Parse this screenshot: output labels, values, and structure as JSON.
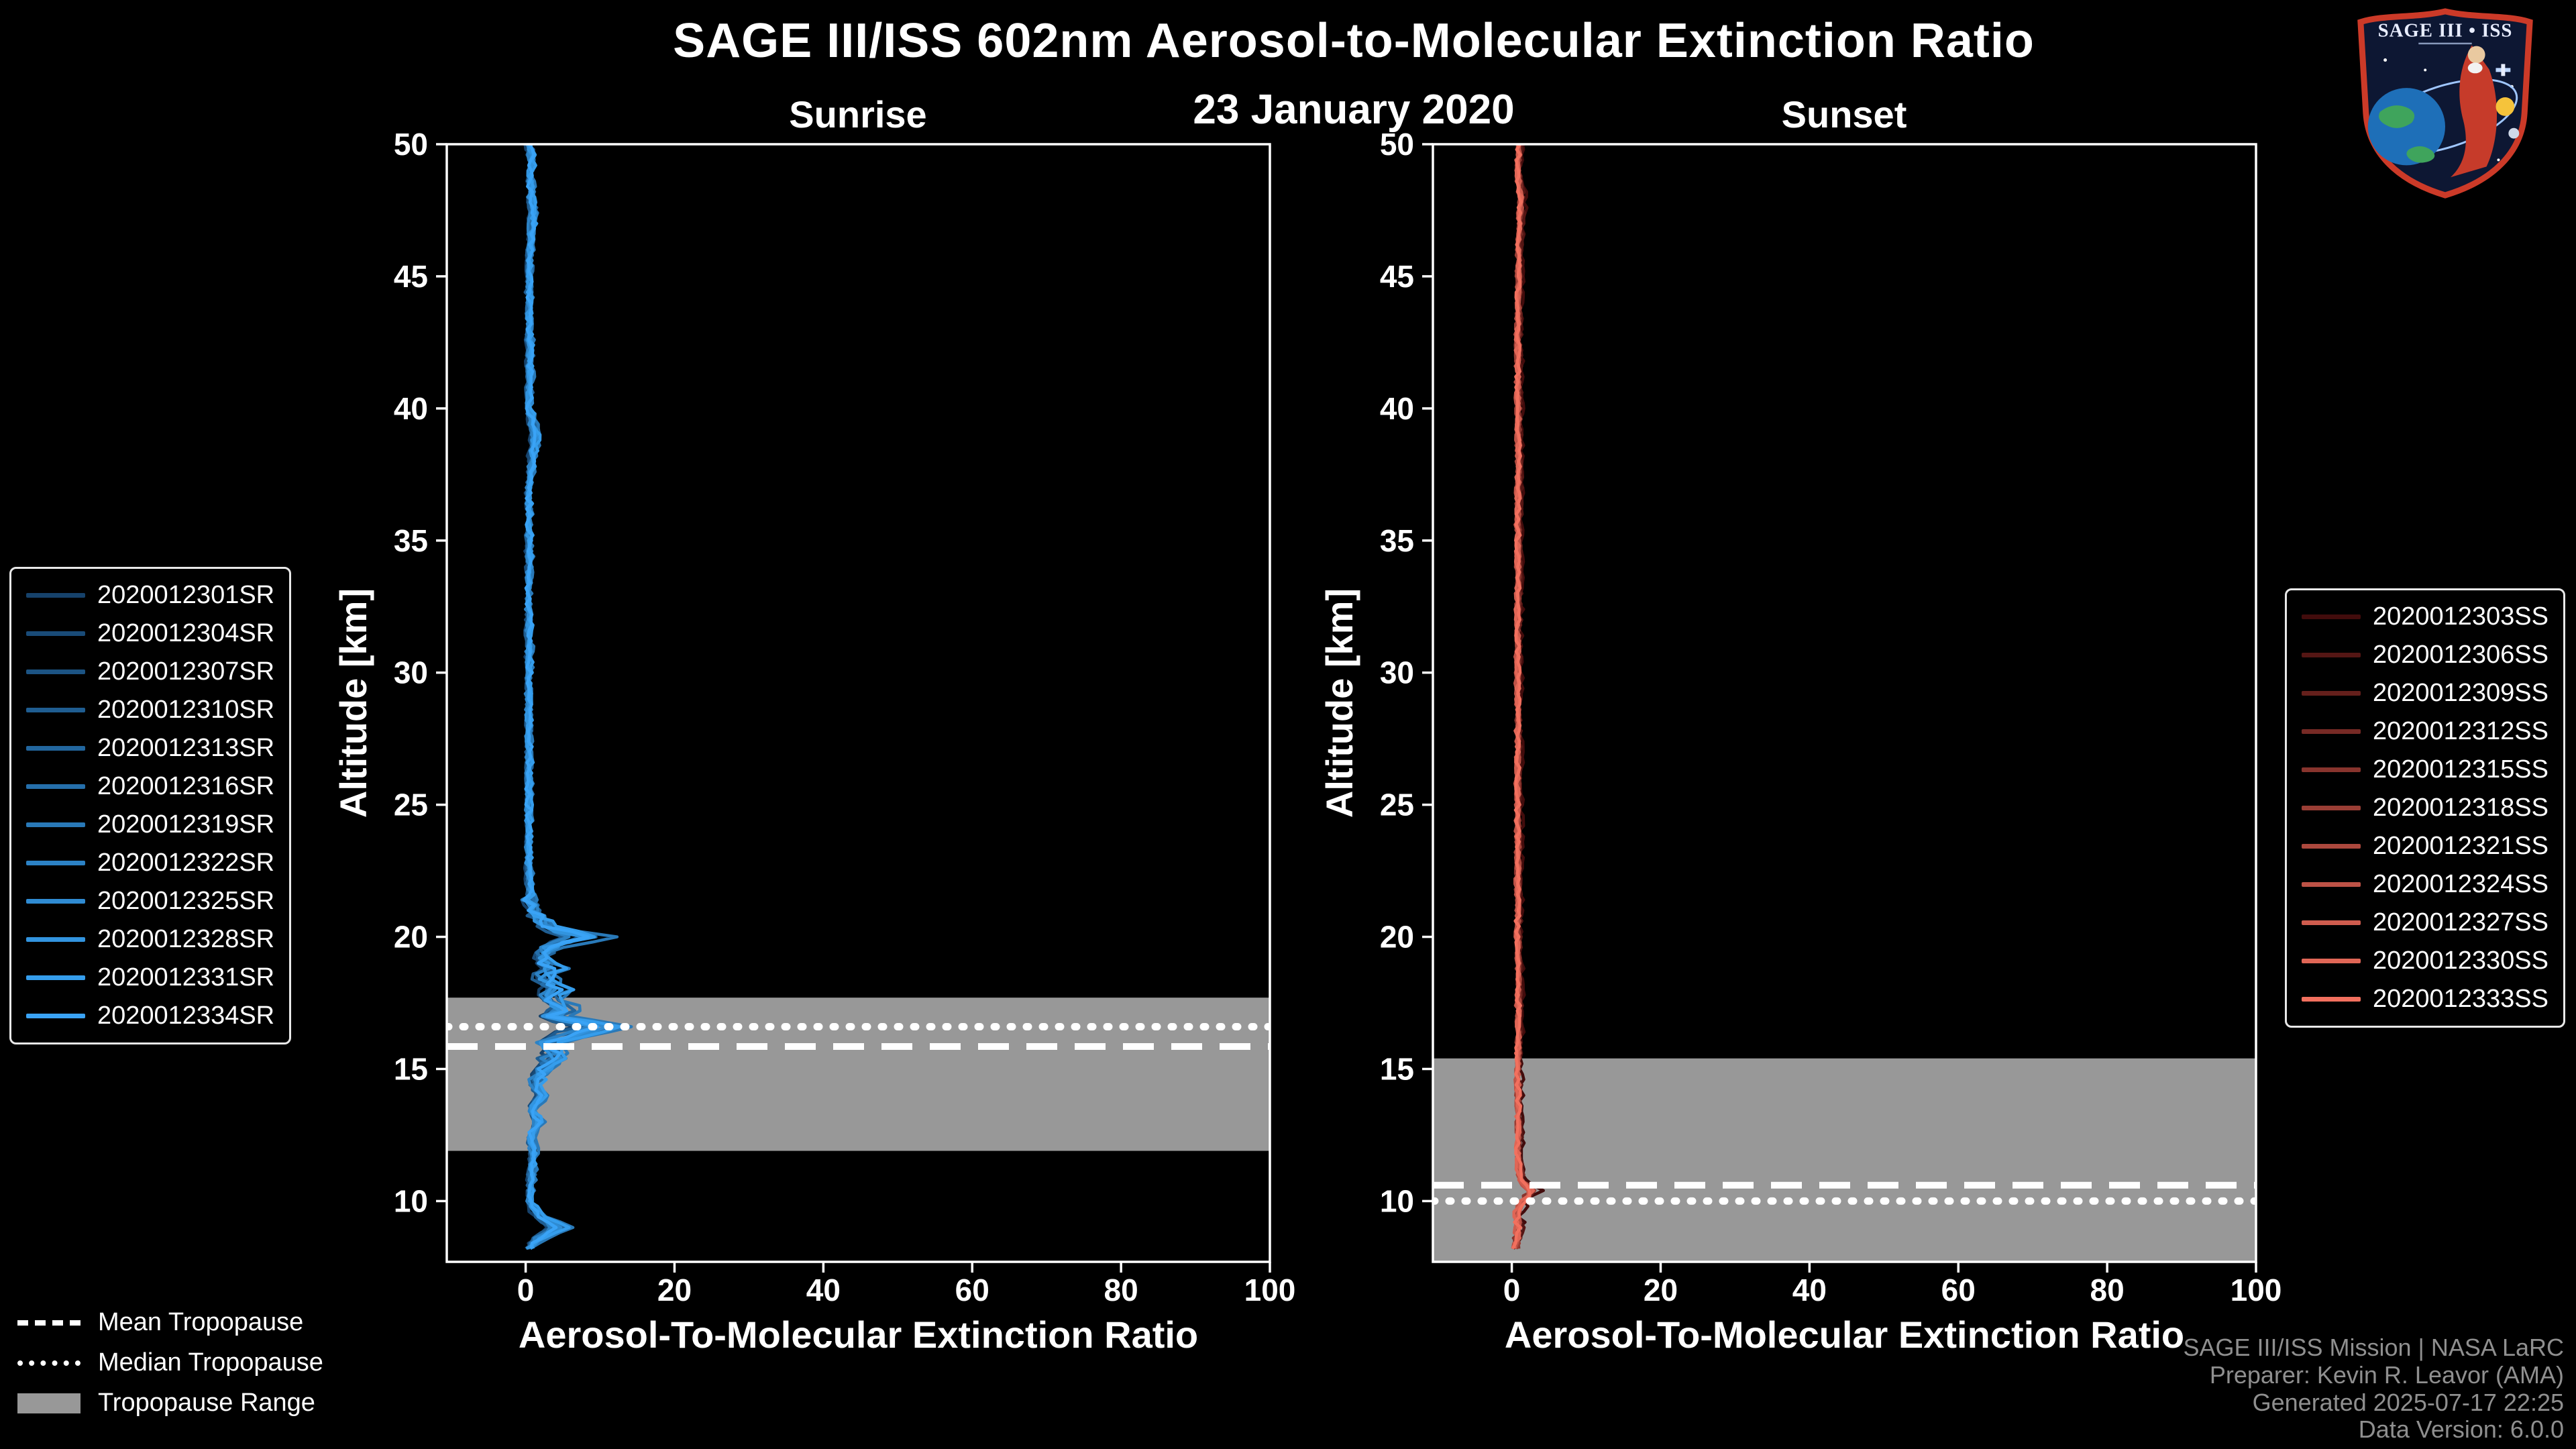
{
  "header": {
    "title": "SAGE III/ISS 602nm Aerosol-to-Molecular Extinction Ratio",
    "date": "23 January 2020"
  },
  "logo": {
    "title": "SAGE III • ISS"
  },
  "footer": {
    "credit_lines": [
      "SAGE III/ISS Mission | NASA LaRC",
      "Preparer: Kevin R. Leavor (AMA)",
      "Generated 2025-07-17 22:25",
      "Data Version: 6.0.0"
    ]
  },
  "tropopause_legend": [
    {
      "style": "dashed",
      "label": "Mean Tropopause"
    },
    {
      "style": "dotted",
      "label": "Median Tropopause"
    },
    {
      "style": "band",
      "label": "Tropopause Range"
    }
  ],
  "colors": {
    "background": "#000000",
    "axis": "#ffffff",
    "tropopause_band": "#989898",
    "tropopause_line": "#ffffff"
  },
  "chart_data": [
    {
      "type": "line",
      "panel": "sunrise",
      "title": "Sunrise",
      "xlabel": "Aerosol-To-Molecular Extinction Ratio",
      "ylabel": "Altitude [km]",
      "xlim": [
        -10.6,
        100
      ],
      "ylim": [
        7.7,
        50
      ],
      "xticks": [
        0,
        20,
        40,
        60,
        80,
        100
      ],
      "yticks": [
        10,
        15,
        20,
        25,
        30,
        35,
        40,
        45,
        50
      ],
      "grid": false,
      "legend_position": "outside-left",
      "tropopause": {
        "mean_km": 15.85,
        "median_km": 16.6,
        "range_km": [
          11.9,
          17.7
        ]
      },
      "series": [
        {
          "name": "2020012301SR",
          "color": "#16426b",
          "peak_scale": 0.6
        },
        {
          "name": "2020012304SR",
          "color": "#194b78",
          "peak_scale": 0.8
        },
        {
          "name": "2020012307SR",
          "color": "#1c5484",
          "peak_scale": 1.0
        },
        {
          "name": "2020012310SR",
          "color": "#1f5d91",
          "peak_scale": 0.7
        },
        {
          "name": "2020012313SR",
          "color": "#22669e",
          "peak_scale": 1.2
        },
        {
          "name": "2020012316SR",
          "color": "#256fab",
          "peak_scale": 0.9
        },
        {
          "name": "2020012319SR",
          "color": "#2979b8",
          "peak_scale": 1.5
        },
        {
          "name": "2020012322SR",
          "color": "#2c82c5",
          "peak_scale": 0.8
        },
        {
          "name": "2020012325SR",
          "color": "#2f8bd2",
          "peak_scale": 1.1
        },
        {
          "name": "2020012328SR",
          "color": "#3294df",
          "peak_scale": 0.95
        },
        {
          "name": "2020012331SR",
          "color": "#359dec",
          "peak_scale": 1.3
        },
        {
          "name": "2020012334SR",
          "color": "#3aa3f6",
          "peak_scale": 1.0
        }
      ],
      "profile_alt_ratio": [
        [
          8.2,
          0.5
        ],
        [
          8.5,
          1.2
        ],
        [
          9.0,
          4.4
        ],
        [
          9.5,
          1.5
        ],
        [
          10,
          0.6
        ],
        [
          11,
          0.8
        ],
        [
          12,
          1.0
        ],
        [
          12.5,
          0.6
        ],
        [
          13,
          1.8
        ],
        [
          13.5,
          0.8
        ],
        [
          14,
          2.2
        ],
        [
          14.5,
          1.0
        ],
        [
          15,
          2.5
        ],
        [
          15.5,
          4.0
        ],
        [
          16,
          3.0
        ],
        [
          16.3,
          6.5
        ],
        [
          16.6,
          9.5
        ],
        [
          17,
          3.5
        ],
        [
          17.3,
          5.5
        ],
        [
          17.6,
          3.0
        ],
        [
          18,
          4.5
        ],
        [
          18.4,
          2.5
        ],
        [
          18.8,
          3.5
        ],
        [
          19.2,
          2.0
        ],
        [
          19.6,
          3.0
        ],
        [
          20,
          7.5
        ],
        [
          20.4,
          3.0
        ],
        [
          20.8,
          1.5
        ],
        [
          21.2,
          0.8
        ],
        [
          22,
          0.5
        ],
        [
          23,
          0.4
        ],
        [
          25,
          0.4
        ],
        [
          27,
          0.5
        ],
        [
          29,
          0.4
        ],
        [
          31,
          0.5
        ],
        [
          33,
          0.4
        ],
        [
          35,
          0.5
        ],
        [
          37,
          0.4
        ],
        [
          39,
          1.3
        ],
        [
          40,
          0.5
        ],
        [
          42,
          0.6
        ],
        [
          44,
          0.4
        ],
        [
          46,
          0.6
        ],
        [
          47.5,
          1.0
        ],
        [
          48.5,
          0.6
        ],
        [
          49.5,
          0.8
        ],
        [
          50,
          0.5
        ]
      ]
    },
    {
      "type": "line",
      "panel": "sunset",
      "title": "Sunset",
      "xlabel": "Aerosol-To-Molecular Extinction Ratio",
      "ylabel": "Altitude [km]",
      "xlim": [
        -10.6,
        100
      ],
      "ylim": [
        7.7,
        50
      ],
      "xticks": [
        0,
        20,
        40,
        60,
        80,
        100
      ],
      "yticks": [
        10,
        15,
        20,
        25,
        30,
        35,
        40,
        45,
        50
      ],
      "grid": false,
      "legend_position": "outside-right",
      "tropopause": {
        "mean_km": 10.6,
        "median_km": 10.0,
        "range_km": [
          7.7,
          15.4
        ]
      },
      "series": [
        {
          "name": "2020012303SS",
          "color": "#420c0c",
          "peak_scale": 1.6
        },
        {
          "name": "2020012306SS",
          "color": "#541614",
          "peak_scale": 1.3
        },
        {
          "name": "2020012309SS",
          "color": "#65201c",
          "peak_scale": 1.15
        },
        {
          "name": "2020012312SS",
          "color": "#772a25",
          "peak_scale": 1.05
        },
        {
          "name": "2020012315SS",
          "color": "#88342d",
          "peak_scale": 1.0
        },
        {
          "name": "2020012318SS",
          "color": "#9a3e35",
          "peak_scale": 0.95
        },
        {
          "name": "2020012321SS",
          "color": "#ac483d",
          "peak_scale": 1.0
        },
        {
          "name": "2020012324SS",
          "color": "#bd5246",
          "peak_scale": 0.9
        },
        {
          "name": "2020012327SS",
          "color": "#cf5c4e",
          "peak_scale": 1.0
        },
        {
          "name": "2020012330SS",
          "color": "#e06656",
          "peak_scale": 0.95
        },
        {
          "name": "2020012333SS",
          "color": "#f2705e",
          "peak_scale": 1.0
        }
      ],
      "profile_alt_ratio": [
        [
          8.2,
          0.5
        ],
        [
          9,
          0.9
        ],
        [
          9.6,
          0.7
        ],
        [
          10,
          1.4
        ],
        [
          10.4,
          2.6
        ],
        [
          10.8,
          1.3
        ],
        [
          11.5,
          0.8
        ],
        [
          13,
          0.9
        ],
        [
          15,
          0.8
        ],
        [
          17,
          0.9
        ],
        [
          20,
          0.8
        ],
        [
          23,
          0.8
        ],
        [
          26,
          0.8
        ],
        [
          30,
          0.8
        ],
        [
          34,
          0.8
        ],
        [
          38,
          0.9
        ],
        [
          42,
          0.8
        ],
        [
          46,
          0.9
        ],
        [
          48,
          1.2
        ],
        [
          49,
          0.8
        ],
        [
          50,
          1.0
        ]
      ]
    }
  ]
}
